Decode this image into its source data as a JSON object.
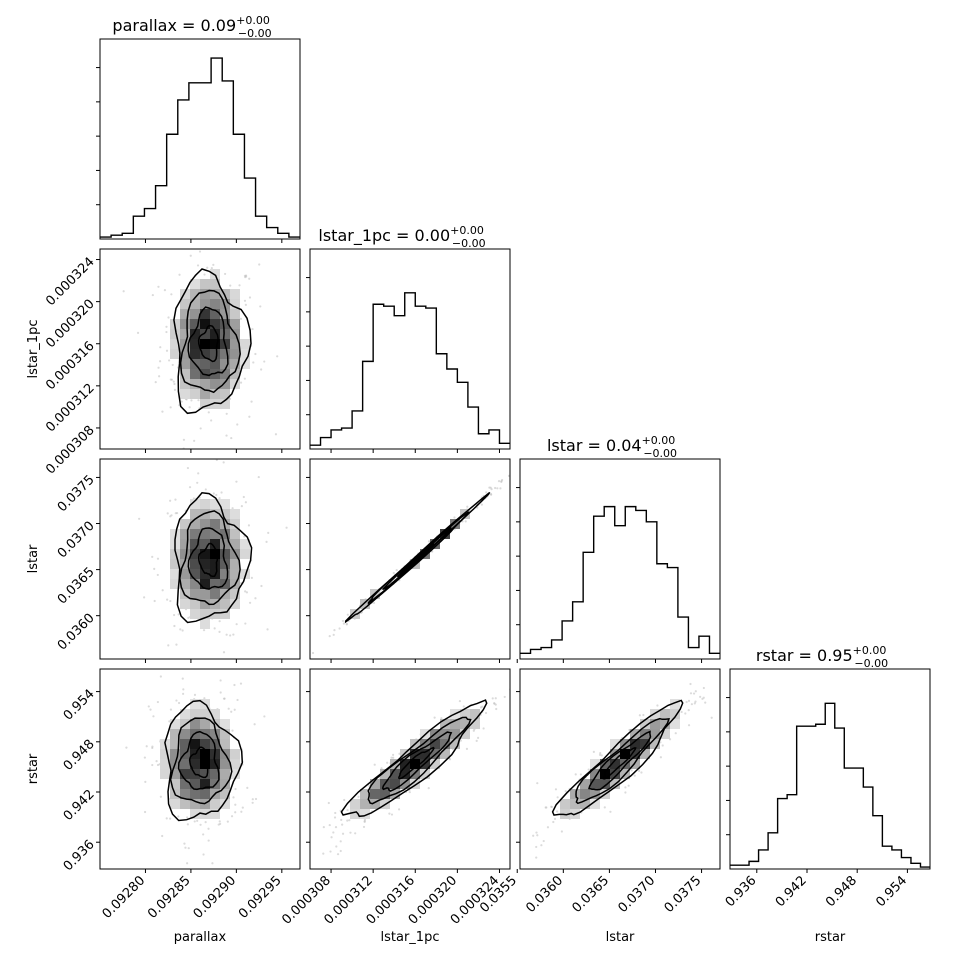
{
  "chart_data": {
    "type": "corner",
    "params": [
      {
        "name": "parallax",
        "label": "parallax",
        "title": "parallax = 0.09",
        "title_err_plus": "+0.00",
        "title_err_minus": "−0.00",
        "range": [
          0.09275,
          0.09297
        ],
        "ticks": [
          0.0928,
          0.09285,
          0.0929,
          0.09295
        ],
        "tick_labels": [
          "0.09280",
          "0.09285",
          "0.09290",
          "0.09295"
        ],
        "hist": [
          0.01,
          0.02,
          0.03,
          0.12,
          0.16,
          0.28,
          0.55,
          0.73,
          0.82,
          0.82,
          0.95,
          0.83,
          0.55,
          0.32,
          0.12,
          0.06,
          0.03,
          0.01
        ]
      },
      {
        "name": "lstar_1pc",
        "label": "lstar_1pc",
        "title": "lstar_1pc = 0.00",
        "title_err_plus": "+0.00",
        "title_err_minus": "−0.00",
        "range": [
          0.000306,
          0.000325
        ],
        "ticks": [
          0.000308,
          0.000312,
          0.000316,
          0.00032,
          0.000324
        ],
        "tick_labels": [
          "0.000308",
          "0.000312",
          "0.000316",
          "0.000320",
          "0.000324"
        ],
        "hist": [
          0.02,
          0.06,
          0.1,
          0.11,
          0.2,
          0.46,
          0.76,
          0.75,
          0.7,
          0.82,
          0.75,
          0.74,
          0.5,
          0.42,
          0.35,
          0.22,
          0.08,
          0.1,
          0.03
        ]
      },
      {
        "name": "lstar",
        "label": "lstar",
        "title": "lstar = 0.04",
        "title_err_plus": "+0.00",
        "title_err_minus": "−0.00",
        "range": [
          0.03553,
          0.0377
        ],
        "ticks": [
          0.0355,
          0.036,
          0.0365,
          0.037,
          0.0375
        ],
        "tick_labels": [
          "0.0355",
          "0.0360",
          "0.0365",
          "0.0370",
          "0.0375"
        ],
        "hist": [
          0.03,
          0.05,
          0.06,
          0.1,
          0.2,
          0.3,
          0.56,
          0.75,
          0.8,
          0.7,
          0.8,
          0.78,
          0.72,
          0.5,
          0.48,
          0.22,
          0.06,
          0.12,
          0.03
        ]
      },
      {
        "name": "rstar",
        "label": "rstar",
        "title": "rstar = 0.95",
        "title_err_plus": "+0.00",
        "title_err_minus": "−0.00",
        "range": [
          0.9328,
          0.9567
        ],
        "ticks": [
          0.936,
          0.942,
          0.948,
          0.954
        ],
        "tick_labels": [
          "0.936",
          "0.942",
          "0.948",
          "0.954"
        ],
        "hist": [
          0.02,
          0.02,
          0.04,
          0.1,
          0.19,
          0.37,
          0.39,
          0.75,
          0.75,
          0.76,
          0.87,
          0.74,
          0.53,
          0.53,
          0.43,
          0.28,
          0.12,
          0.1,
          0.06,
          0.03,
          0.01
        ]
      }
    ],
    "pairs": [
      {
        "x": "parallax",
        "y": "lstar_1pc",
        "center": [
          0.09287,
          0.000316
        ],
        "spread": [
          2e-05,
          3.2e-06
        ],
        "rho": 0.0
      },
      {
        "x": "parallax",
        "y": "lstar",
        "center": [
          0.09287,
          0.0366
        ],
        "spread": [
          2e-05,
          0.00033
        ],
        "rho": 0.0
      },
      {
        "x": "parallax",
        "y": "rstar",
        "center": [
          0.09286,
          0.9455
        ],
        "spread": [
          2e-05,
          0.0034
        ],
        "rho": 0.0
      },
      {
        "x": "lstar_1pc",
        "y": "lstar",
        "center": [
          0.000316,
          0.0366
        ],
        "spread": [
          3.2e-06,
          0.00033
        ],
        "rho": 0.998
      },
      {
        "x": "lstar_1pc",
        "y": "rstar",
        "center": [
          0.000316,
          0.9455
        ],
        "spread": [
          3.2e-06,
          0.0034
        ],
        "rho": 0.93
      },
      {
        "x": "lstar",
        "y": "rstar",
        "center": [
          0.0366,
          0.9455
        ],
        "spread": [
          0.00033,
          0.0034
        ],
        "rho": 0.93
      }
    ]
  }
}
